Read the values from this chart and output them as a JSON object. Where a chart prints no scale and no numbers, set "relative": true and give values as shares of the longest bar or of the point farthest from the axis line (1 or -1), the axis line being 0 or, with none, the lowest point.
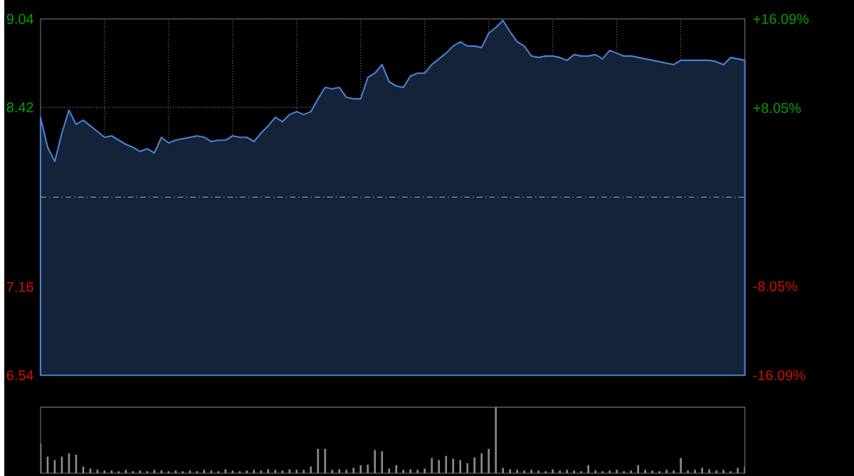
{
  "chart_data": [
    {
      "type": "area",
      "color": "#4a7fd0",
      "categories": [
        null,
        null,
        null,
        null,
        null,
        null,
        null,
        null,
        null,
        null,
        null,
        null,
        null,
        null,
        null,
        null,
        null,
        null,
        null,
        null,
        null,
        null,
        null,
        null,
        null,
        null,
        null,
        null,
        null,
        null,
        null,
        null,
        null,
        null,
        null,
        null,
        null,
        null,
        null,
        null,
        null,
        null,
        null,
        null,
        null,
        null,
        null,
        null,
        null,
        null,
        null,
        null,
        null,
        null,
        null,
        null,
        null,
        null,
        null,
        null,
        null,
        null,
        null,
        null,
        null,
        null,
        null,
        null,
        null,
        null,
        null,
        null,
        null,
        null,
        null,
        null,
        null,
        null,
        null,
        null,
        null,
        null,
        null,
        null,
        null,
        null,
        null,
        null,
        null,
        null,
        null,
        null,
        null,
        null,
        null,
        null,
        null,
        null,
        null,
        null
      ],
      "values": [
        8.35,
        8.14,
        8.04,
        8.24,
        8.4,
        8.3,
        8.33,
        8.29,
        8.25,
        8.21,
        8.22,
        8.19,
        8.16,
        8.14,
        8.11,
        8.13,
        8.1,
        8.21,
        8.17,
        8.19,
        8.2,
        8.21,
        8.22,
        8.21,
        8.18,
        8.19,
        8.19,
        8.22,
        8.21,
        8.21,
        8.18,
        8.24,
        8.29,
        8.35,
        8.32,
        8.37,
        8.39,
        8.37,
        8.39,
        8.48,
        8.56,
        8.55,
        8.56,
        8.49,
        8.48,
        8.48,
        8.63,
        8.66,
        8.72,
        8.6,
        8.57,
        8.56,
        8.64,
        8.66,
        8.66,
        8.72,
        8.76,
        8.8,
        8.85,
        8.88,
        8.85,
        8.85,
        8.84,
        8.94,
        8.98,
        9.03,
        8.95,
        8.88,
        8.85,
        8.78,
        8.77,
        8.78,
        8.78,
        8.77,
        8.75,
        8.79,
        8.78,
        8.78,
        8.79,
        8.76,
        8.82,
        8.8,
        8.78,
        8.78,
        8.77,
        8.76,
        8.75,
        8.74,
        8.73,
        8.72,
        8.75,
        8.75,
        8.75,
        8.75,
        8.75,
        8.74,
        8.72,
        8.77,
        8.76,
        8.75
      ],
      "ylim": [
        6.54,
        9.04
      ],
      "yticks": [
        6.54,
        7.16,
        8.42,
        9.04
      ],
      "y2lim": [
        -16.09,
        16.09
      ],
      "y2ticks": [
        {
          "value": -16.09,
          "label": "-16.09%"
        },
        {
          "value": -8.05,
          "label": "-8.05%"
        },
        {
          "value": 8.05,
          "label": "+8.05%"
        },
        {
          "value": 16.09,
          "label": "+16.09%"
        }
      ],
      "ref_lines": [
        {
          "axis": "y",
          "value": 7.79,
          "line_style": "dashed"
        }
      ],
      "grid": true,
      "tick_labels": "y"
    },
    {
      "type": "bar",
      "relative": true,
      "color": "#8c8c8c",
      "categories": [
        null,
        null,
        null,
        null,
        null,
        null,
        null,
        null,
        null,
        null,
        null,
        null,
        null,
        null,
        null,
        null,
        null,
        null,
        null,
        null,
        null,
        null,
        null,
        null,
        null,
        null,
        null,
        null,
        null,
        null,
        null,
        null,
        null,
        null,
        null,
        null,
        null,
        null,
        null,
        null,
        null,
        null,
        null,
        null,
        null,
        null,
        null,
        null,
        null,
        null,
        null,
        null,
        null,
        null,
        null,
        null,
        null,
        null,
        null,
        null,
        null,
        null,
        null,
        null,
        null,
        null,
        null,
        null,
        null,
        null,
        null,
        null,
        null,
        null,
        null,
        null,
        null,
        null,
        null,
        null,
        null,
        null,
        null,
        null,
        null,
        null,
        null,
        null,
        null,
        null,
        null,
        null,
        null,
        null,
        null,
        null,
        null,
        null,
        null,
        null
      ],
      "values": [
        0.45,
        0.25,
        0.2,
        0.25,
        0.3,
        0.28,
        0.1,
        0.07,
        0.05,
        0.04,
        0.04,
        0.03,
        0.05,
        0.03,
        0.04,
        0.03,
        0.05,
        0.04,
        0.03,
        0.04,
        0.03,
        0.04,
        0.03,
        0.05,
        0.04,
        0.03,
        0.06,
        0.04,
        0.03,
        0.04,
        0.05,
        0.04,
        0.06,
        0.05,
        0.04,
        0.06,
        0.05,
        0.05,
        0.1,
        0.37,
        0.37,
        0.05,
        0.06,
        0.05,
        0.08,
        0.12,
        0.13,
        0.35,
        0.33,
        0.07,
        0.12,
        0.05,
        0.06,
        0.05,
        0.07,
        0.23,
        0.2,
        0.26,
        0.22,
        0.2,
        0.15,
        0.24,
        0.3,
        0.37,
        1.0,
        0.08,
        0.06,
        0.05,
        0.04,
        0.05,
        0.04,
        0.03,
        0.06,
        0.04,
        0.05,
        0.04,
        0.03,
        0.12,
        0.04,
        0.03,
        0.04,
        0.05,
        0.03,
        0.04,
        0.12,
        0.05,
        0.04,
        0.03,
        0.05,
        0.04,
        0.23,
        0.04,
        0.05,
        0.08,
        0.06,
        0.04,
        0.05,
        0.03,
        0.08,
        0.1
      ]
    }
  ]
}
